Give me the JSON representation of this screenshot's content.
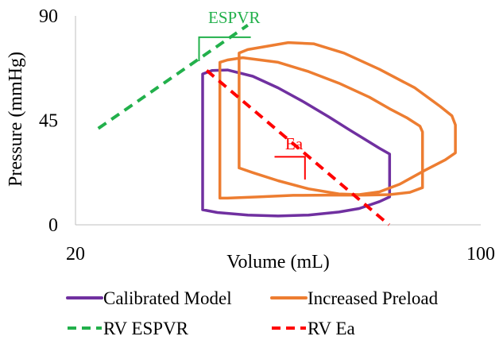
{
  "chart_data": {
    "type": "line",
    "title": "",
    "xlabel": "Volume (mL)",
    "ylabel": "Pressure (mmHg)",
    "xlim": [
      20,
      100
    ],
    "ylim": [
      0,
      90
    ],
    "x_ticks": [
      "20",
      "100"
    ],
    "y_ticks": [
      "0",
      "45",
      "90"
    ],
    "grid": false,
    "legend_position": "bottom",
    "series": [
      {
        "name": "Calibrated Model",
        "color": "#7030a0",
        "style": "solid",
        "points": [
          [
            45.1,
            6.5
          ],
          [
            45.1,
            36
          ],
          [
            45.1,
            65
          ],
          [
            47,
            66.5
          ],
          [
            50,
            66.7
          ],
          [
            55,
            64
          ],
          [
            60,
            59
          ],
          [
            65,
            53
          ],
          [
            70,
            46.5
          ],
          [
            74,
            41
          ],
          [
            77,
            37
          ],
          [
            80,
            33
          ],
          [
            82,
            30.5
          ],
          [
            82,
            12
          ],
          [
            80,
            10
          ],
          [
            76,
            7
          ],
          [
            72,
            5.5
          ],
          [
            66,
            4.2
          ],
          [
            60,
            3.8
          ],
          [
            54,
            4.2
          ],
          [
            48,
            5.3
          ],
          [
            45.1,
            6.5
          ]
        ]
      },
      {
        "name": "Increased Preload",
        "color": "#ed7d31",
        "style": "solid",
        "points": [
          [
            48.5,
            11.5
          ],
          [
            48.5,
            40
          ],
          [
            48.5,
            70
          ],
          [
            50,
            71
          ],
          [
            53,
            72
          ],
          [
            60,
            70
          ],
          [
            66,
            66
          ],
          [
            72,
            61
          ],
          [
            78,
            55
          ],
          [
            82,
            50
          ],
          [
            85.5,
            46
          ],
          [
            88,
            42.5
          ],
          [
            88.5,
            40
          ],
          [
            88.5,
            16
          ],
          [
            86,
            14
          ],
          [
            82,
            13
          ],
          [
            77,
            12.8
          ],
          [
            70,
            12.8
          ],
          [
            63,
            12.7
          ],
          [
            56,
            12
          ],
          [
            50,
            11.5
          ],
          [
            48.5,
            11.5
          ]
        ]
      },
      {
        "name": "Increased Preload",
        "color": "#ed7d31",
        "style": "solid",
        "points": [
          [
            52.3,
            24.5
          ],
          [
            52.3,
            45
          ],
          [
            52.3,
            74
          ],
          [
            54,
            75.5
          ],
          [
            58,
            77
          ],
          [
            62,
            78.5
          ],
          [
            67,
            78
          ],
          [
            73,
            74
          ],
          [
            80,
            67
          ],
          [
            87,
            59
          ],
          [
            92,
            51
          ],
          [
            94.3,
            47
          ],
          [
            95,
            43
          ],
          [
            95,
            31
          ],
          [
            93,
            28
          ],
          [
            89,
            23.5
          ],
          [
            84,
            17.5
          ],
          [
            80,
            14.2
          ],
          [
            76,
            13
          ],
          [
            72,
            13.3
          ],
          [
            66,
            15.5
          ],
          [
            60,
            19
          ],
          [
            55,
            22.5
          ],
          [
            52.3,
            24.5
          ]
        ]
      },
      {
        "name": "RV ESPVR",
        "color": "#22b04b",
        "style": "dashed",
        "points": [
          [
            24.5,
            41.5
          ],
          [
            54,
            86
          ]
        ]
      },
      {
        "name": "RV Ea",
        "color": "#ff0000",
        "style": "dashed",
        "points": [
          [
            45.9,
            66.5
          ],
          [
            81.9,
            0
          ]
        ]
      }
    ],
    "annotations": [
      {
        "text": "ESPVR",
        "color": "#22b04b",
        "text_at": [
          46.2,
          89
        ],
        "bracket": [
          [
            54.6,
            80.8
          ],
          [
            44.4,
            80.8
          ],
          [
            44.4,
            70.5
          ]
        ]
      },
      {
        "text": "Ea",
        "color": "#ff0000",
        "text_at": [
          61.4,
          34.5
        ],
        "bracket": [
          [
            59.3,
            29.3
          ],
          [
            65.3,
            29.3
          ],
          [
            65.3,
            19.5
          ]
        ]
      }
    ],
    "legend": [
      {
        "label": "Calibrated Model",
        "color": "#7030a0",
        "style": "solid"
      },
      {
        "label": "Increased Preload",
        "color": "#ed7d31",
        "style": "solid"
      },
      {
        "label": "RV ESPVR",
        "color": "#22b04b",
        "style": "dashed"
      },
      {
        "label": "RV Ea",
        "color": "#ff0000",
        "style": "dashed"
      }
    ]
  }
}
